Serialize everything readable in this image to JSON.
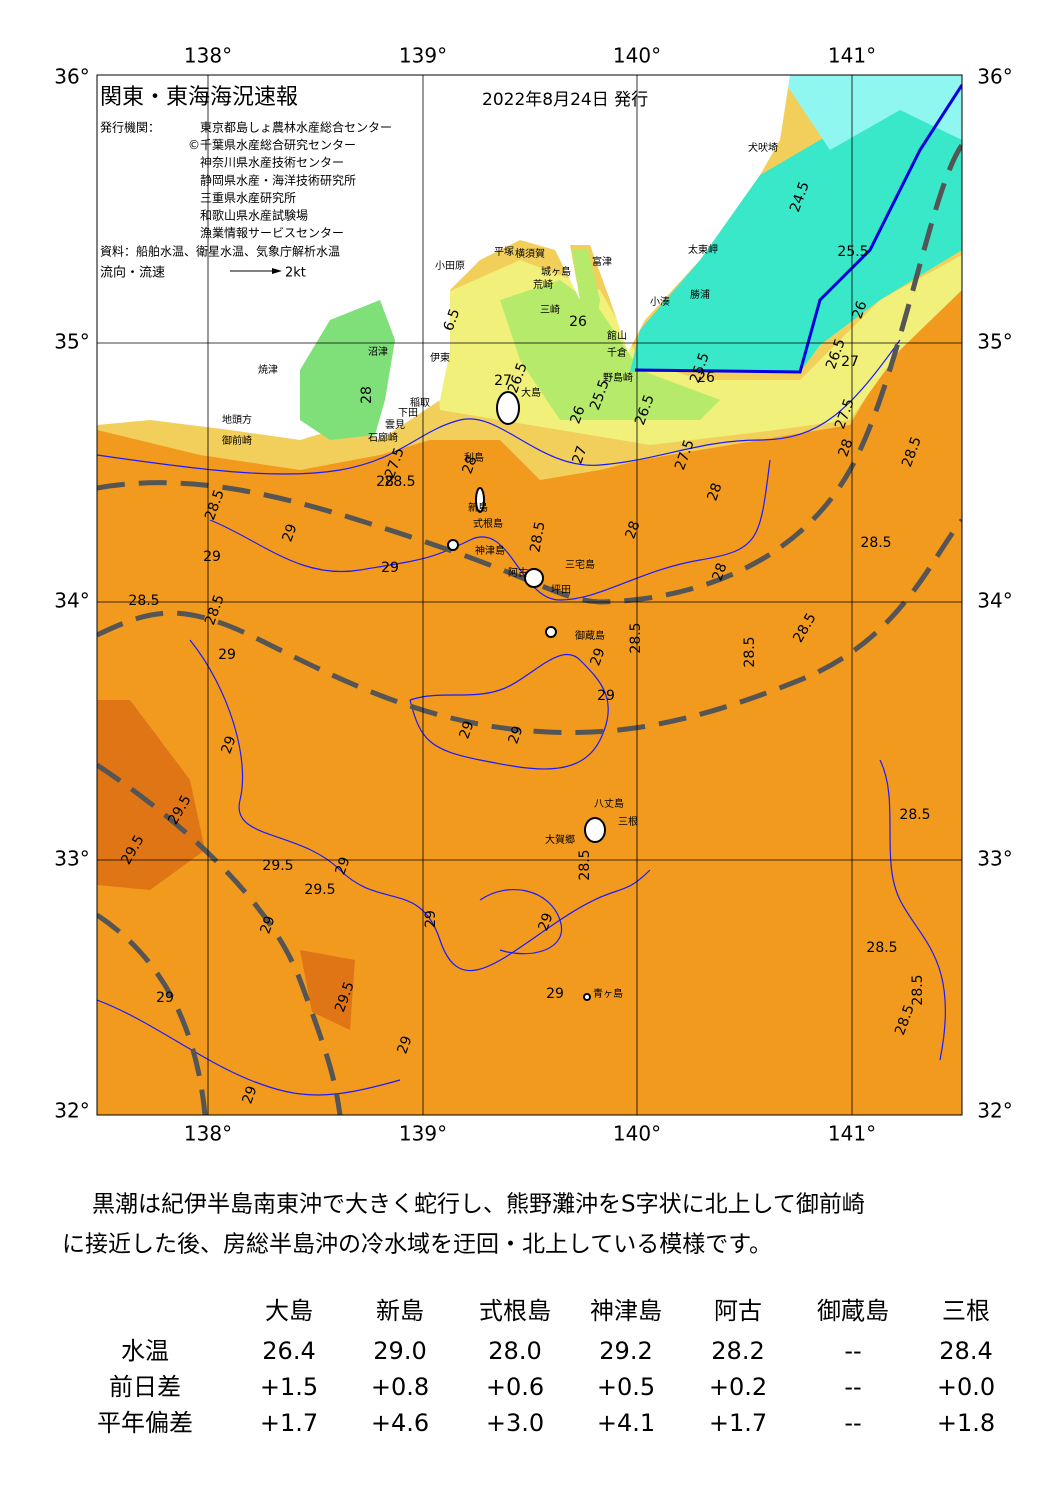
{
  "map": {
    "title": "関東・東海海況速報",
    "date": "2022年8月24日 発行",
    "issuer_label": "発行機関：",
    "issuers": [
      "東京都島しょ農林水産総合センター",
      "©千葉県水産総合研究センター",
      "神奈川県水産技術センター",
      "静岡県水産・海洋技術研究所",
      "三重県水産研究所",
      "和歌山県水産試験場",
      "漁業情報サービスセンター"
    ],
    "source": "資料：船舶水温、衛星水温、気象庁解析水温",
    "flow_legend": "流向・流速",
    "flow_unit": "2kt",
    "lon_labels": [
      "138°",
      "139°",
      "140°",
      "141°"
    ],
    "lat_labels": [
      "36°",
      "35°",
      "34°",
      "33°",
      "32°"
    ],
    "place_names": [
      "犬吠埼",
      "太東岬",
      "勝浦",
      "小湊",
      "富津",
      "横須賀",
      "城ヶ島",
      "平塚",
      "小田原",
      "荒崎",
      "三崎",
      "館山",
      "千倉",
      "野島崎",
      "沼津",
      "伊東",
      "焼津",
      "稲取",
      "下田",
      "雲見",
      "石廊崎",
      "地頭方",
      "御前崎",
      "大島",
      "利島",
      "新島",
      "式根島",
      "神津島",
      "三宅島",
      "阿古",
      "坪田",
      "御蔵島",
      "八丈島",
      "三根",
      "大賀郷",
      "青ヶ島"
    ],
    "contour_labels": [
      "6.5",
      "27",
      "26.5",
      "26",
      "26",
      "25.5",
      "26.5",
      "25.5",
      "26",
      "27.5",
      "27",
      "28",
      "27.5",
      "28",
      "28.5",
      "28",
      "28",
      "28.5",
      "28.5",
      "29",
      "29",
      "29",
      "28",
      "28",
      "28.5",
      "28.5",
      "29",
      "28.5",
      "28.5",
      "28.5",
      "29",
      "29",
      "29",
      "29",
      "29",
      "29.5",
      "29.5",
      "29.5",
      "29.5",
      "29",
      "29",
      "29",
      "29",
      "28.5",
      "29",
      "29.5",
      "29",
      "29",
      "29",
      "28.5",
      "28.5",
      "27.5",
      "28",
      "26",
      "26.5",
      "27",
      "25.5",
      "24.5",
      "28.5",
      "28.5",
      "28.5",
      "28.5"
    ]
  },
  "description": [
    "黒潮は紀伊半島南東沖で大きく蛇行し、熊野灘沖をS字状に北上して御前崎",
    "に接近した後、房総半島沖の冷水域を迂回・北上している模様です。"
  ],
  "table": {
    "columns": [
      "大島",
      "新島",
      "式根島",
      "神津島",
      "阿古",
      "御蔵島",
      "三根"
    ],
    "rows": [
      {
        "label": "水温",
        "values": [
          "26.4",
          "29.0",
          "28.0",
          "29.2",
          "28.2",
          "--",
          "28.4"
        ]
      },
      {
        "label": "前日差",
        "values": [
          "+1.5",
          "+0.8",
          "+0.6",
          "+0.5",
          "+0.2",
          "--",
          "+0.0"
        ]
      },
      {
        "label": "平年偏差",
        "values": [
          "+1.7",
          "+4.6",
          "+3.0",
          "+4.1",
          "+1.7",
          "--",
          "+1.8"
        ]
      }
    ]
  }
}
